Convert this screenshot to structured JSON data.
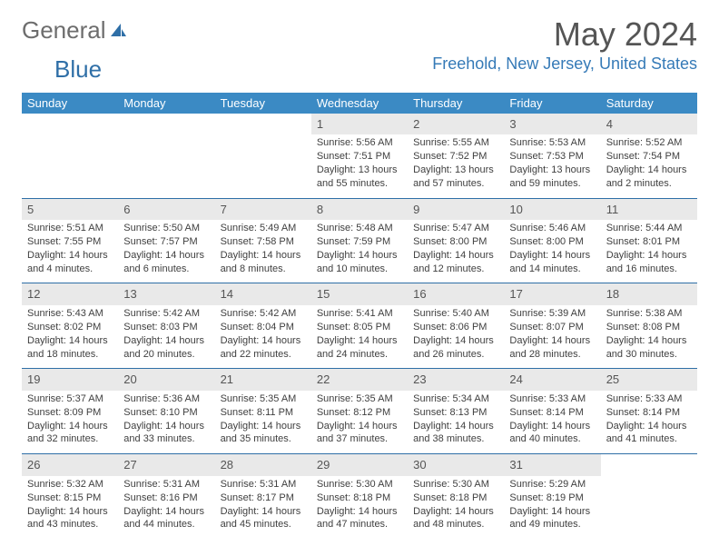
{
  "logo": {
    "grey": "General",
    "blue": "Blue"
  },
  "title": {
    "month": "May 2024",
    "location": "Freehold, New Jersey, United States"
  },
  "colors": {
    "header_bg": "#3b8ac4",
    "header_text": "#ffffff",
    "row_sep": "#2f6fa7",
    "daynum_bg": "#e9e9e9",
    "title_color": "#555555",
    "location_color": "#357ab7",
    "body_text": "#404040"
  },
  "weekdays": [
    "Sunday",
    "Monday",
    "Tuesday",
    "Wednesday",
    "Thursday",
    "Friday",
    "Saturday"
  ],
  "weeks": [
    [
      {
        "n": "",
        "sr": "",
        "ss": "",
        "dl": ""
      },
      {
        "n": "",
        "sr": "",
        "ss": "",
        "dl": ""
      },
      {
        "n": "",
        "sr": "",
        "ss": "",
        "dl": ""
      },
      {
        "n": "1",
        "sr": "Sunrise: 5:56 AM",
        "ss": "Sunset: 7:51 PM",
        "dl": "Daylight: 13 hours and 55 minutes."
      },
      {
        "n": "2",
        "sr": "Sunrise: 5:55 AM",
        "ss": "Sunset: 7:52 PM",
        "dl": "Daylight: 13 hours and 57 minutes."
      },
      {
        "n": "3",
        "sr": "Sunrise: 5:53 AM",
        "ss": "Sunset: 7:53 PM",
        "dl": "Daylight: 13 hours and 59 minutes."
      },
      {
        "n": "4",
        "sr": "Sunrise: 5:52 AM",
        "ss": "Sunset: 7:54 PM",
        "dl": "Daylight: 14 hours and 2 minutes."
      }
    ],
    [
      {
        "n": "5",
        "sr": "Sunrise: 5:51 AM",
        "ss": "Sunset: 7:55 PM",
        "dl": "Daylight: 14 hours and 4 minutes."
      },
      {
        "n": "6",
        "sr": "Sunrise: 5:50 AM",
        "ss": "Sunset: 7:57 PM",
        "dl": "Daylight: 14 hours and 6 minutes."
      },
      {
        "n": "7",
        "sr": "Sunrise: 5:49 AM",
        "ss": "Sunset: 7:58 PM",
        "dl": "Daylight: 14 hours and 8 minutes."
      },
      {
        "n": "8",
        "sr": "Sunrise: 5:48 AM",
        "ss": "Sunset: 7:59 PM",
        "dl": "Daylight: 14 hours and 10 minutes."
      },
      {
        "n": "9",
        "sr": "Sunrise: 5:47 AM",
        "ss": "Sunset: 8:00 PM",
        "dl": "Daylight: 14 hours and 12 minutes."
      },
      {
        "n": "10",
        "sr": "Sunrise: 5:46 AM",
        "ss": "Sunset: 8:00 PM",
        "dl": "Daylight: 14 hours and 14 minutes."
      },
      {
        "n": "11",
        "sr": "Sunrise: 5:44 AM",
        "ss": "Sunset: 8:01 PM",
        "dl": "Daylight: 14 hours and 16 minutes."
      }
    ],
    [
      {
        "n": "12",
        "sr": "Sunrise: 5:43 AM",
        "ss": "Sunset: 8:02 PM",
        "dl": "Daylight: 14 hours and 18 minutes."
      },
      {
        "n": "13",
        "sr": "Sunrise: 5:42 AM",
        "ss": "Sunset: 8:03 PM",
        "dl": "Daylight: 14 hours and 20 minutes."
      },
      {
        "n": "14",
        "sr": "Sunrise: 5:42 AM",
        "ss": "Sunset: 8:04 PM",
        "dl": "Daylight: 14 hours and 22 minutes."
      },
      {
        "n": "15",
        "sr": "Sunrise: 5:41 AM",
        "ss": "Sunset: 8:05 PM",
        "dl": "Daylight: 14 hours and 24 minutes."
      },
      {
        "n": "16",
        "sr": "Sunrise: 5:40 AM",
        "ss": "Sunset: 8:06 PM",
        "dl": "Daylight: 14 hours and 26 minutes."
      },
      {
        "n": "17",
        "sr": "Sunrise: 5:39 AM",
        "ss": "Sunset: 8:07 PM",
        "dl": "Daylight: 14 hours and 28 minutes."
      },
      {
        "n": "18",
        "sr": "Sunrise: 5:38 AM",
        "ss": "Sunset: 8:08 PM",
        "dl": "Daylight: 14 hours and 30 minutes."
      }
    ],
    [
      {
        "n": "19",
        "sr": "Sunrise: 5:37 AM",
        "ss": "Sunset: 8:09 PM",
        "dl": "Daylight: 14 hours and 32 minutes."
      },
      {
        "n": "20",
        "sr": "Sunrise: 5:36 AM",
        "ss": "Sunset: 8:10 PM",
        "dl": "Daylight: 14 hours and 33 minutes."
      },
      {
        "n": "21",
        "sr": "Sunrise: 5:35 AM",
        "ss": "Sunset: 8:11 PM",
        "dl": "Daylight: 14 hours and 35 minutes."
      },
      {
        "n": "22",
        "sr": "Sunrise: 5:35 AM",
        "ss": "Sunset: 8:12 PM",
        "dl": "Daylight: 14 hours and 37 minutes."
      },
      {
        "n": "23",
        "sr": "Sunrise: 5:34 AM",
        "ss": "Sunset: 8:13 PM",
        "dl": "Daylight: 14 hours and 38 minutes."
      },
      {
        "n": "24",
        "sr": "Sunrise: 5:33 AM",
        "ss": "Sunset: 8:14 PM",
        "dl": "Daylight: 14 hours and 40 minutes."
      },
      {
        "n": "25",
        "sr": "Sunrise: 5:33 AM",
        "ss": "Sunset: 8:14 PM",
        "dl": "Daylight: 14 hours and 41 minutes."
      }
    ],
    [
      {
        "n": "26",
        "sr": "Sunrise: 5:32 AM",
        "ss": "Sunset: 8:15 PM",
        "dl": "Daylight: 14 hours and 43 minutes."
      },
      {
        "n": "27",
        "sr": "Sunrise: 5:31 AM",
        "ss": "Sunset: 8:16 PM",
        "dl": "Daylight: 14 hours and 44 minutes."
      },
      {
        "n": "28",
        "sr": "Sunrise: 5:31 AM",
        "ss": "Sunset: 8:17 PM",
        "dl": "Daylight: 14 hours and 45 minutes."
      },
      {
        "n": "29",
        "sr": "Sunrise: 5:30 AM",
        "ss": "Sunset: 8:18 PM",
        "dl": "Daylight: 14 hours and 47 minutes."
      },
      {
        "n": "30",
        "sr": "Sunrise: 5:30 AM",
        "ss": "Sunset: 8:18 PM",
        "dl": "Daylight: 14 hours and 48 minutes."
      },
      {
        "n": "31",
        "sr": "Sunrise: 5:29 AM",
        "ss": "Sunset: 8:19 PM",
        "dl": "Daylight: 14 hours and 49 minutes."
      },
      {
        "n": "",
        "sr": "",
        "ss": "",
        "dl": ""
      }
    ]
  ]
}
